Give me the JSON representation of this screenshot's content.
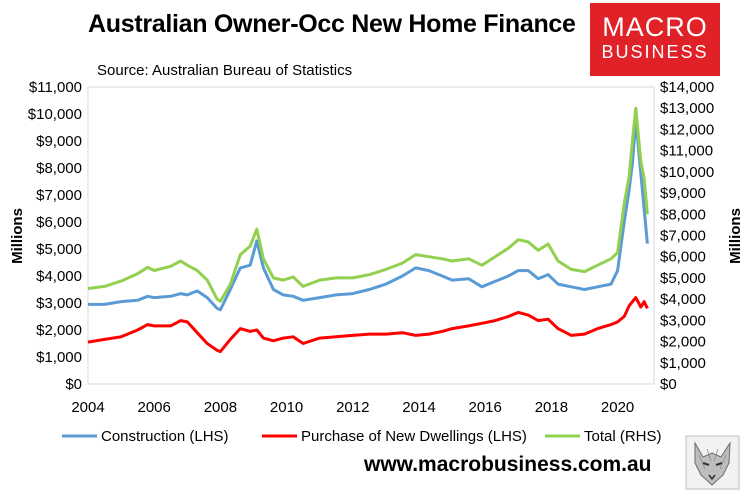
{
  "header": {
    "title": "Australian Owner-Occ New Home Finance",
    "source": "Source: Australian Bureau of Statistics",
    "logo_line1": "MACRO",
    "logo_line2": "BUSINESS",
    "url": "www.macrobusiness.com.au"
  },
  "colors": {
    "construction": "#5b9bd5",
    "purchase": "#ff0000",
    "total": "#92d050",
    "logo_bg": "#e02127"
  },
  "chart_data": {
    "type": "line",
    "title": "Australian Owner-Occ New Home Finance",
    "ylabel": "Millions",
    "y2label": "Millions",
    "xlim": [
      2004,
      2021.1
    ],
    "ylim": [
      0,
      11000
    ],
    "y2lim": [
      0,
      14000
    ],
    "x_ticks": [
      "2004",
      "2006",
      "2008",
      "2010",
      "2012",
      "2014",
      "2016",
      "2018",
      "2020"
    ],
    "y_ticks": [
      "$0",
      "$1,000",
      "$2,000",
      "$3,000",
      "$4,000",
      "$5,000",
      "$6,000",
      "$7,000",
      "$8,000",
      "$9,000",
      "$10,000",
      "$11,000"
    ],
    "y2_ticks": [
      "$0",
      "$1,000",
      "$2,000",
      "$3,000",
      "$4,000",
      "$5,000",
      "$6,000",
      "$7,000",
      "$8,000",
      "$9,000",
      "$10,000",
      "$11,000",
      "$12,000",
      "$13,000",
      "$14,000"
    ],
    "grid": false,
    "legend": "bottom",
    "series": [
      {
        "name": "Construction (LHS)",
        "axis": "left",
        "x": [
          2004,
          2004.5,
          2005,
          2005.5,
          2005.8,
          2006,
          2006.5,
          2006.8,
          2007,
          2007.3,
          2007.6,
          2007.9,
          2008,
          2008.3,
          2008.6,
          2008.9,
          2009.1,
          2009.3,
          2009.6,
          2009.9,
          2010.2,
          2010.5,
          2011,
          2011.5,
          2012,
          2012.5,
          2013,
          2013.5,
          2013.9,
          2014.3,
          2014.7,
          2015,
          2015.5,
          2015.9,
          2016.3,
          2016.7,
          2017,
          2017.3,
          2017.6,
          2017.9,
          2018.2,
          2018.6,
          2019,
          2019.4,
          2019.8,
          2020,
          2020.2,
          2020.35,
          2020.45,
          2020.55,
          2020.7,
          2020.8,
          2020.9
        ],
        "y": [
          2950,
          2950,
          3050,
          3100,
          3250,
          3200,
          3250,
          3350,
          3300,
          3450,
          3200,
          2800,
          2750,
          3500,
          4300,
          4400,
          5300,
          4300,
          3500,
          3300,
          3250,
          3100,
          3200,
          3300,
          3350,
          3500,
          3700,
          4000,
          4300,
          4200,
          4000,
          3850,
          3900,
          3600,
          3800,
          4000,
          4200,
          4200,
          3900,
          4050,
          3700,
          3600,
          3500,
          3600,
          3700,
          4200,
          6000,
          7200,
          8200,
          9800,
          7800,
          6500,
          5200
        ]
      },
      {
        "name": "Purchase of New Dwellings (LHS)",
        "axis": "left",
        "x": [
          2004,
          2004.5,
          2005,
          2005.5,
          2005.8,
          2006,
          2006.5,
          2006.8,
          2007,
          2007.3,
          2007.6,
          2007.9,
          2008,
          2008.3,
          2008.6,
          2008.9,
          2009.1,
          2009.3,
          2009.6,
          2009.9,
          2010.2,
          2010.5,
          2011,
          2011.5,
          2012,
          2012.5,
          2013,
          2013.5,
          2013.9,
          2014.3,
          2014.7,
          2015,
          2015.5,
          2015.9,
          2016.3,
          2016.7,
          2017,
          2017.3,
          2017.6,
          2017.9,
          2018.2,
          2018.6,
          2019,
          2019.4,
          2019.8,
          2020,
          2020.2,
          2020.35,
          2020.45,
          2020.55,
          2020.7,
          2020.8,
          2020.9
        ],
        "y": [
          1550,
          1650,
          1750,
          2000,
          2200,
          2150,
          2150,
          2350,
          2300,
          1900,
          1500,
          1250,
          1200,
          1650,
          2050,
          1950,
          2000,
          1700,
          1600,
          1700,
          1750,
          1500,
          1700,
          1750,
          1800,
          1850,
          1850,
          1900,
          1800,
          1850,
          1950,
          2050,
          2150,
          2250,
          2350,
          2500,
          2650,
          2550,
          2350,
          2400,
          2050,
          1800,
          1850,
          2050,
          2200,
          2300,
          2500,
          2900,
          3050,
          3200,
          2850,
          3050,
          2800
        ]
      },
      {
        "name": "Total (RHS)",
        "axis": "right",
        "x": [
          2004,
          2004.5,
          2005,
          2005.5,
          2005.8,
          2006,
          2006.5,
          2006.8,
          2007,
          2007.3,
          2007.6,
          2007.9,
          2008,
          2008.3,
          2008.6,
          2008.9,
          2009.1,
          2009.3,
          2009.6,
          2009.9,
          2010.2,
          2010.5,
          2011,
          2011.5,
          2012,
          2012.5,
          2013,
          2013.5,
          2013.9,
          2014.3,
          2014.7,
          2015,
          2015.5,
          2015.9,
          2016.3,
          2016.7,
          2017,
          2017.3,
          2017.6,
          2017.9,
          2018.2,
          2018.6,
          2019,
          2019.4,
          2019.8,
          2020,
          2020.2,
          2020.35,
          2020.45,
          2020.55,
          2020.7,
          2020.8,
          2020.9
        ],
        "y": [
          4500,
          4600,
          4850,
          5200,
          5500,
          5350,
          5550,
          5800,
          5600,
          5350,
          4900,
          4000,
          3900,
          4700,
          6100,
          6500,
          7300,
          5900,
          5000,
          4900,
          5050,
          4600,
          4900,
          5000,
          5000,
          5150,
          5400,
          5700,
          6100,
          6000,
          5900,
          5800,
          5900,
          5600,
          6000,
          6400,
          6800,
          6700,
          6300,
          6600,
          5800,
          5400,
          5300,
          5600,
          5900,
          6200,
          8500,
          9800,
          11500,
          13000,
          10500,
          9700,
          8000
        ]
      }
    ]
  }
}
